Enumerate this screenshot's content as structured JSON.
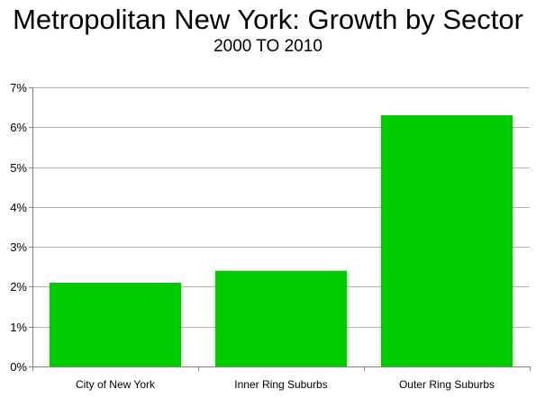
{
  "chart_data": {
    "type": "bar",
    "title": "Metropolitan New York: Growth by Sector",
    "subtitle": "2000 TO 2010",
    "xlabel": "",
    "ylabel": "",
    "categories": [
      "City of New York",
      "Inner Ring Suburbs",
      "Outer Ring Suburbs"
    ],
    "values": [
      2.1,
      2.4,
      6.3
    ],
    "ylim": [
      0,
      7
    ],
    "yticks": [
      0,
      1,
      2,
      3,
      4,
      5,
      6,
      7
    ],
    "ytick_suffix": "%",
    "grid": true,
    "legend": "none",
    "colors": {
      "bar": "#00cc00",
      "grid": "#b3b3b3",
      "axis": "#808080"
    }
  }
}
